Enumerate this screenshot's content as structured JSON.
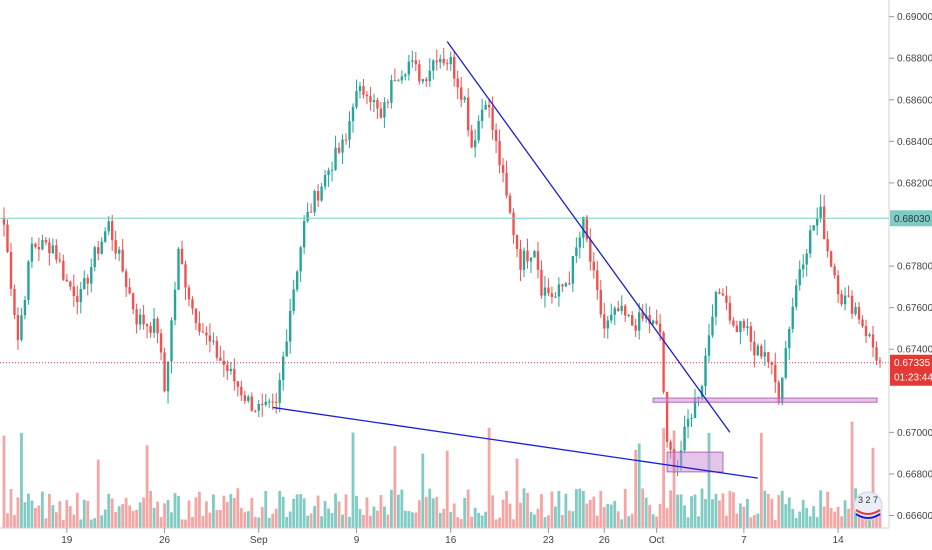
{
  "chart_data": {
    "type": "candlestick",
    "ylim": [
      0.6654,
      0.6908
    ],
    "grid": false,
    "colors": {
      "up": "#26a69a",
      "down": "#ef5350",
      "up_volume": "#80cbc4",
      "down_volume": "#f4a6a4",
      "trendline": "#1a1fd6",
      "horizontal_line": "#80cbc4",
      "current_price_line": "#e53935",
      "zone": "#ce93d8"
    },
    "y_ticks": [
      0.69,
      0.688,
      0.686,
      0.684,
      0.682,
      0.678,
      0.676,
      0.674,
      0.67,
      0.668,
      0.666
    ],
    "y_tick_labels": [
      "0.69000",
      "0.68800",
      "0.68600",
      "0.68400",
      "0.68200",
      "0.67800",
      "0.67600",
      "0.67400",
      "0.67000",
      "0.66800",
      "0.66600"
    ],
    "x_ticks": [
      {
        "label": "19",
        "bar": 18
      },
      {
        "label": "26",
        "bar": 46
      },
      {
        "label": "Sep",
        "bar": 73
      },
      {
        "label": "9",
        "bar": 101
      },
      {
        "label": "16",
        "bar": 128
      },
      {
        "label": "23",
        "bar": 156
      },
      {
        "label": "26",
        "bar": 172
      },
      {
        "label": "Oct",
        "bar": 187
      },
      {
        "label": "7",
        "bar": 212
      },
      {
        "label": "14",
        "bar": 239
      }
    ],
    "bar_count": 252,
    "anchors": [
      [
        0,
        0.68
      ],
      [
        4,
        0.6745
      ],
      [
        8,
        0.679
      ],
      [
        14,
        0.679
      ],
      [
        18,
        0.6772
      ],
      [
        22,
        0.6765
      ],
      [
        26,
        0.6785
      ],
      [
        30,
        0.68
      ],
      [
        34,
        0.6778
      ],
      [
        38,
        0.6755
      ],
      [
        44,
        0.675
      ],
      [
        46,
        0.672
      ],
      [
        50,
        0.6786
      ],
      [
        54,
        0.676
      ],
      [
        58,
        0.6745
      ],
      [
        62,
        0.6735
      ],
      [
        66,
        0.6725
      ],
      [
        70,
        0.6715
      ],
      [
        74,
        0.671
      ],
      [
        78,
        0.6712
      ],
      [
        82,
        0.676
      ],
      [
        86,
        0.68
      ],
      [
        90,
        0.6816
      ],
      [
        94,
        0.683
      ],
      [
        98,
        0.684
      ],
      [
        100,
        0.686
      ],
      [
        104,
        0.6866
      ],
      [
        108,
        0.685
      ],
      [
        112,
        0.6872
      ],
      [
        116,
        0.6878
      ],
      [
        120,
        0.687
      ],
      [
        124,
        0.6882
      ],
      [
        128,
        0.6878
      ],
      [
        132,
        0.686
      ],
      [
        134,
        0.6838
      ],
      [
        138,
        0.6862
      ],
      [
        142,
        0.683
      ],
      [
        144,
        0.6812
      ],
      [
        148,
        0.6782
      ],
      [
        152,
        0.679
      ],
      [
        154,
        0.677
      ],
      [
        158,
        0.6765
      ],
      [
        162,
        0.6775
      ],
      [
        166,
        0.68
      ],
      [
        170,
        0.6765
      ],
      [
        172,
        0.675
      ],
      [
        176,
        0.6758
      ],
      [
        180,
        0.6752
      ],
      [
        184,
        0.6755
      ],
      [
        188,
        0.6748
      ],
      [
        190,
        0.6692
      ],
      [
        193,
        0.6685
      ],
      [
        196,
        0.6705
      ],
      [
        200,
        0.6725
      ],
      [
        203,
        0.676
      ],
      [
        206,
        0.677
      ],
      [
        209,
        0.675
      ],
      [
        212,
        0.6752
      ],
      [
        215,
        0.6738
      ],
      [
        218,
        0.674
      ],
      [
        222,
        0.6718
      ],
      [
        225,
        0.6752
      ],
      [
        228,
        0.678
      ],
      [
        232,
        0.68
      ],
      [
        234,
        0.6805
      ],
      [
        236,
        0.6788
      ],
      [
        240,
        0.6765
      ],
      [
        244,
        0.676
      ],
      [
        248,
        0.6745
      ],
      [
        251,
        0.6733
      ]
    ],
    "trendlines": [
      {
        "name": "descending-resistance",
        "from": [
          127,
          0.6888
        ],
        "to": [
          208,
          0.67
        ]
      },
      {
        "name": "lower-support",
        "from": [
          77,
          0.6712
        ],
        "to": [
          216,
          0.6678
        ]
      }
    ],
    "horizontal_lines": [
      {
        "name": "resistance-0.68030",
        "price": 0.6803,
        "label": "0.68030"
      }
    ],
    "current_price": {
      "price": 0.67335,
      "label": "0.67335",
      "countdown": "01:23:44"
    },
    "zones": [
      {
        "name": "support-zone-a",
        "bars": [
          186,
          255
        ],
        "prices": [
          0.67165,
          0.67145
        ]
      },
      {
        "name": "support-zone-b",
        "bars": [
          190,
          206
        ],
        "prices": [
          0.66905,
          0.6681
        ]
      }
    ]
  },
  "watermark_text": "3 2 7"
}
